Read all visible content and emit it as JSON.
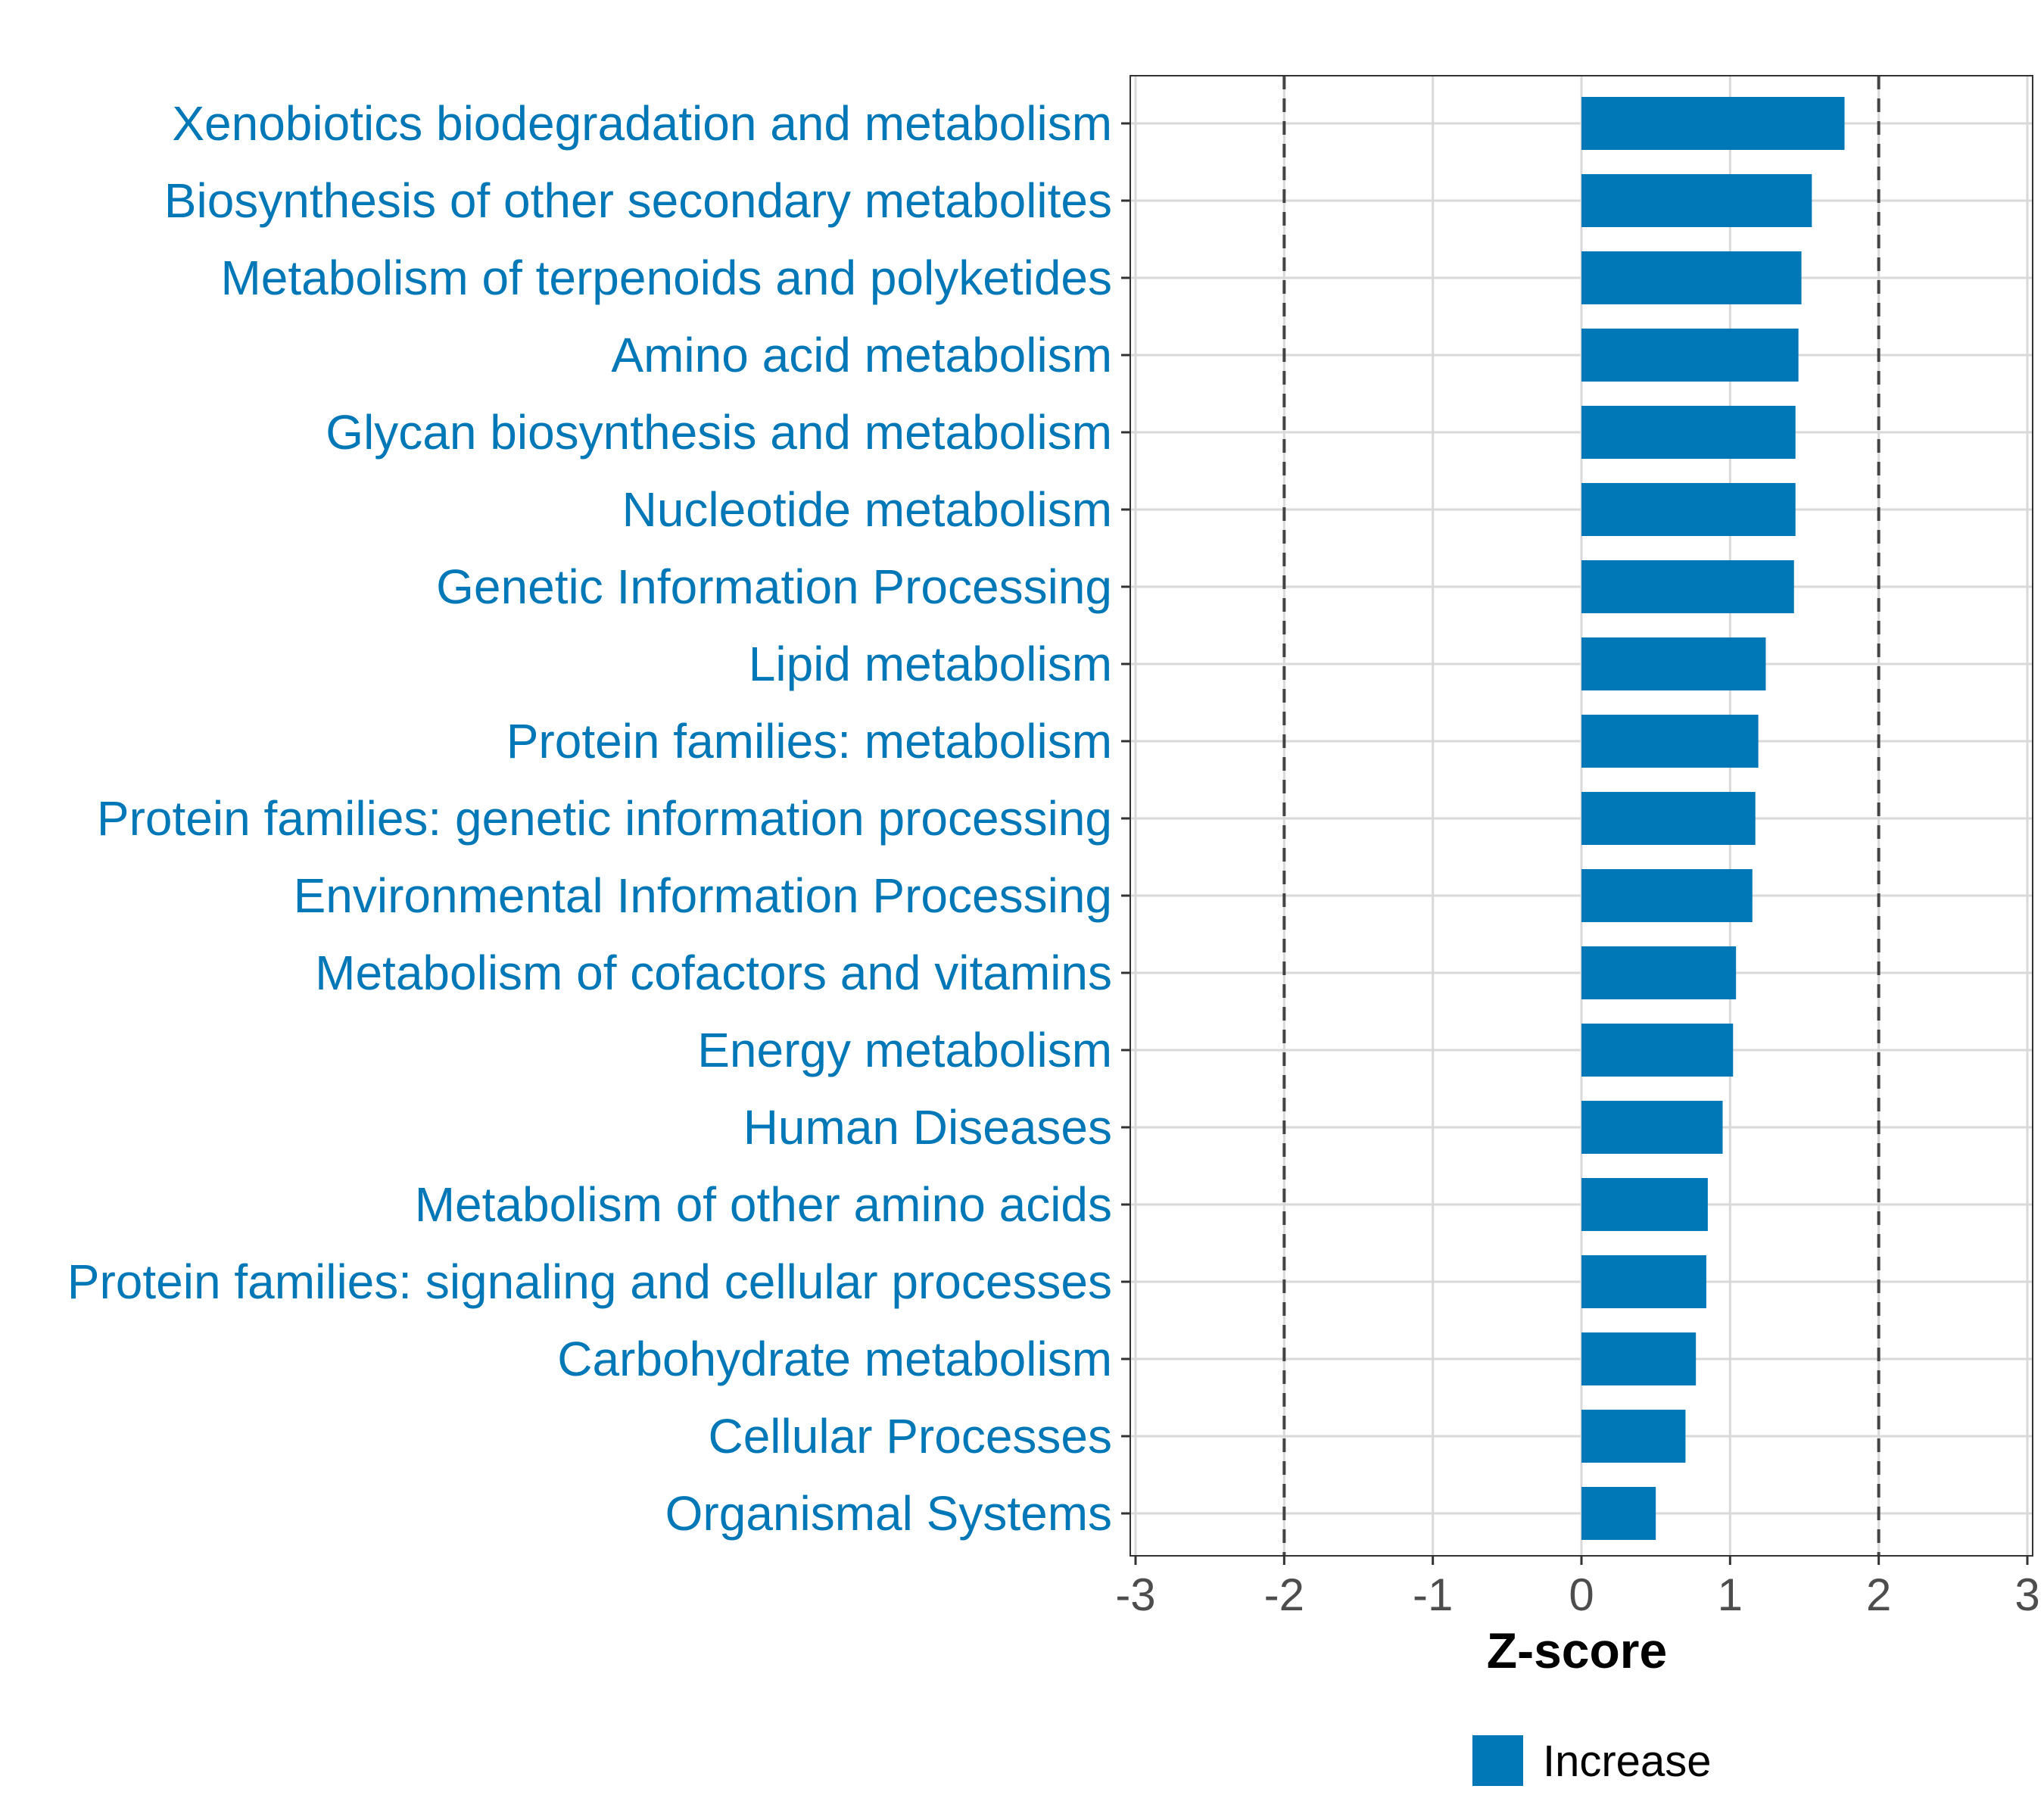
{
  "chart_data": {
    "type": "bar",
    "orientation": "horizontal",
    "categories": [
      "Xenobiotics biodegradation and metabolism",
      "Biosynthesis of other secondary metabolites",
      "Metabolism of terpenoids and polyketides",
      "Amino acid metabolism",
      "Glycan biosynthesis and metabolism",
      "Nucleotide metabolism",
      "Genetic Information Processing",
      "Lipid metabolism",
      "Protein families: metabolism",
      "Protein families: genetic information processing",
      "Environmental Information Processing",
      "Metabolism of cofactors and vitamins",
      "Energy metabolism",
      "Human Diseases",
      "Metabolism of other amino acids",
      "Protein families: signaling and cellular processes",
      "Carbohydrate metabolism",
      "Cellular Processes",
      "Organismal Systems"
    ],
    "values": [
      1.77,
      1.55,
      1.48,
      1.46,
      1.44,
      1.44,
      1.43,
      1.24,
      1.19,
      1.17,
      1.15,
      1.04,
      1.02,
      0.95,
      0.85,
      0.84,
      0.77,
      0.7,
      0.5
    ],
    "series_color": "#0077b6",
    "xlabel": "Z-score",
    "ylabel": "",
    "title": "",
    "xlim": [
      -3,
      3
    ],
    "xticks": [
      "-3",
      "-2",
      "-1",
      "0",
      "1",
      "2",
      "3"
    ],
    "reference_lines": [
      -2,
      2
    ],
    "reference_line_style": "dashed",
    "grid": true,
    "legend": {
      "position": "bottom",
      "entries": [
        {
          "label": "Increase",
          "color": "#0077b6"
        }
      ]
    }
  }
}
